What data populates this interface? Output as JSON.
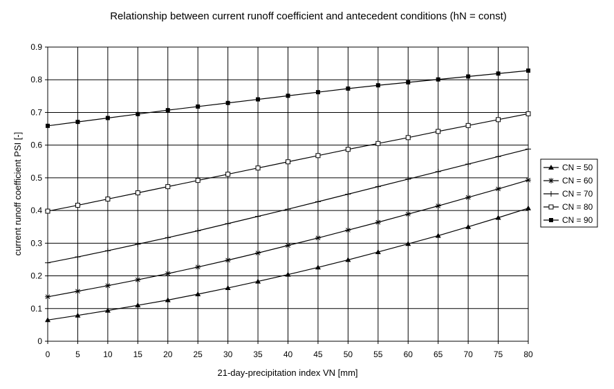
{
  "chart_data": {
    "type": "line",
    "title": "Relationship between current runoff coefficient and antecedent conditions (hN = const)",
    "xlabel": "21-day-precipitation index VN [mm]",
    "ylabel": "current runoff coefficient PSI [-]",
    "x": [
      0,
      5,
      10,
      15,
      20,
      25,
      30,
      35,
      40,
      45,
      50,
      55,
      60,
      65,
      70,
      75,
      80
    ],
    "xlim": [
      0,
      80
    ],
    "ylim": [
      0,
      0.9
    ],
    "xticks": [
      "0",
      "5",
      "10",
      "15",
      "20",
      "25",
      "30",
      "35",
      "40",
      "45",
      "50",
      "55",
      "60",
      "65",
      "70",
      "75",
      "80"
    ],
    "yticks": [
      "0",
      "0.1",
      "0.2",
      "0.3",
      "0.4",
      "0.5",
      "0.6",
      "0.7",
      "0.8",
      "0.9"
    ],
    "grid": true,
    "legend_position": "right",
    "series": [
      {
        "name": "CN = 50",
        "marker": "triangle-filled",
        "values": [
          0.065,
          0.079,
          0.094,
          0.11,
          0.126,
          0.144,
          0.163,
          0.183,
          0.204,
          0.226,
          0.249,
          0.273,
          0.298,
          0.323,
          0.35,
          0.378,
          0.407
        ]
      },
      {
        "name": "CN = 60",
        "marker": "star",
        "values": [
          0.136,
          0.153,
          0.17,
          0.188,
          0.207,
          0.227,
          0.248,
          0.27,
          0.293,
          0.316,
          0.34,
          0.364,
          0.389,
          0.414,
          0.44,
          0.466,
          0.493
        ]
      },
      {
        "name": "CN = 70",
        "marker": "plus",
        "values": [
          0.24,
          0.258,
          0.277,
          0.297,
          0.317,
          0.338,
          0.36,
          0.382,
          0.404,
          0.427,
          0.45,
          0.473,
          0.496,
          0.519,
          0.542,
          0.565,
          0.588
        ]
      },
      {
        "name": "CN = 80",
        "marker": "square-open",
        "values": [
          0.398,
          0.416,
          0.435,
          0.454,
          0.473,
          0.492,
          0.511,
          0.53,
          0.549,
          0.568,
          0.587,
          0.605,
          0.623,
          0.642,
          0.66,
          0.678,
          0.696
        ]
      },
      {
        "name": "CN = 90",
        "marker": "square-filled",
        "values": [
          0.659,
          0.671,
          0.683,
          0.695,
          0.707,
          0.718,
          0.729,
          0.74,
          0.751,
          0.762,
          0.773,
          0.783,
          0.792,
          0.801,
          0.81,
          0.819,
          0.828
        ]
      }
    ]
  }
}
